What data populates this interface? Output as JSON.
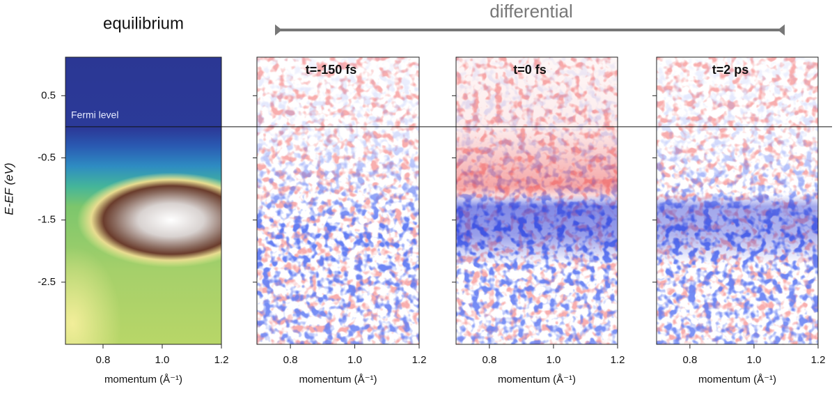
{
  "header": {
    "title": "differential"
  },
  "chart_data": [
    {
      "type": "heatmap",
      "colormap": "spectral",
      "title": "equilibrium",
      "ylabel": "E-EF (eV)",
      "xlabel": "momentum (Å⁻¹)",
      "xlim": [
        0.673,
        1.2
      ],
      "ylim": [
        -3.5,
        1.12
      ],
      "xticks": [
        0.8,
        {
          "value": 1,
          "label": "1.0"
        },
        1.2
      ],
      "yticks": [
        0.5,
        -0.5,
        -1.5,
        -2.5
      ],
      "annotations": [
        {
          "text": "Fermi level",
          "y": 0
        }
      ]
    },
    {
      "type": "heatmap",
      "colormap": "red-blue",
      "title": "t=-150 fs",
      "xlabel": "momentum (Å⁻¹)",
      "xlim": [
        0.696,
        1.2
      ],
      "ylim": [
        -3.5,
        1.12
      ],
      "xticks": [
        0.8,
        {
          "value": 1,
          "label": "1.0"
        },
        1.2
      ],
      "yticks": [
        0.5,
        -0.5,
        -1.5,
        -2.5
      ]
    },
    {
      "type": "heatmap",
      "colormap": "red-blue",
      "title": "t=0 fs",
      "xlabel": "momentum (Å⁻¹)",
      "xlim": [
        0.696,
        1.2
      ],
      "ylim": [
        -3.5,
        1.12
      ],
      "xticks": [
        0.8,
        {
          "value": 1,
          "label": "1.0"
        },
        1.2
      ],
      "yticks": [
        0.5,
        -0.5,
        -1.5,
        -2.5
      ]
    },
    {
      "type": "heatmap",
      "colormap": "red-blue",
      "title": "t=2 ps",
      "xlabel": "momentum (Å⁻¹)",
      "xlim": [
        0.696,
        1.2
      ],
      "ylim": [
        -3.5,
        1.12
      ],
      "xticks": [
        0.8,
        {
          "value": 1,
          "label": "1.0"
        },
        1.2
      ],
      "yticks": [
        0.5,
        -0.5,
        -1.5,
        -2.5
      ]
    }
  ]
}
